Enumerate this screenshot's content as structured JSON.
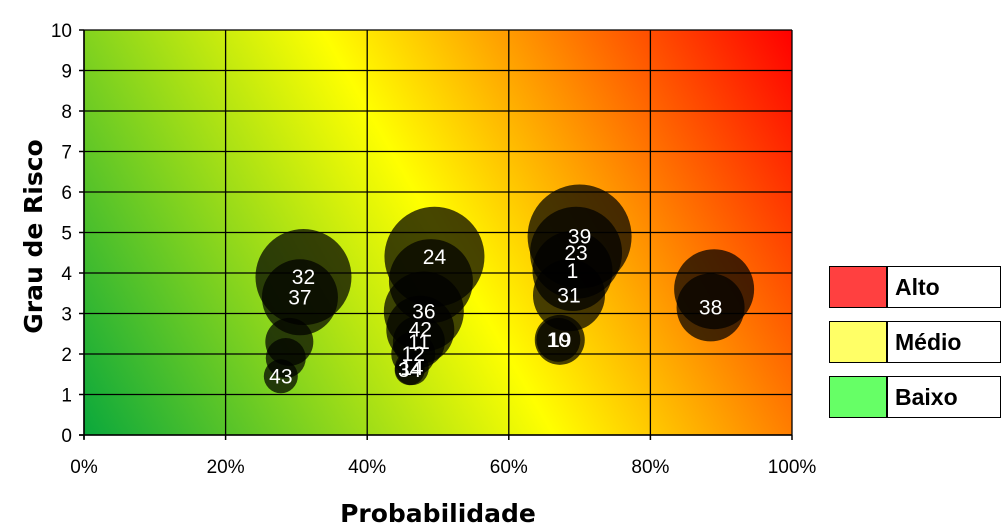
{
  "chart_data": {
    "type": "bubble",
    "title": "",
    "xlabel": "Probabilidade",
    "ylabel": "Grau de Risco",
    "xlim": [
      0,
      100
    ],
    "ylim": [
      0,
      10
    ],
    "x_ticks": [
      "0%",
      "20%",
      "40%",
      "60%",
      "80%",
      "100%"
    ],
    "y_ticks": [
      "0",
      "1",
      "2",
      "3",
      "4",
      "5",
      "6",
      "7",
      "8",
      "9",
      "10"
    ],
    "grid": true,
    "background_gradient": [
      "#0aa83c",
      "#ffff00",
      "#ff0000"
    ],
    "bubbles": [
      {
        "label": "32",
        "x": 31,
        "y": 3.9,
        "size": 48
      },
      {
        "label": "37",
        "x": 30.5,
        "y": 3.4,
        "size": 38
      },
      {
        "label": "",
        "x": 29,
        "y": 2.3,
        "size": 24
      },
      {
        "label": "",
        "x": 28.5,
        "y": 1.9,
        "size": 20
      },
      {
        "label": "43",
        "x": 27.8,
        "y": 1.45,
        "size": 17
      },
      {
        "label": "24",
        "x": 49.5,
        "y": 4.4,
        "size": 50
      },
      {
        "label": "",
        "x": 49,
        "y": 3.8,
        "size": 42
      },
      {
        "label": "36",
        "x": 48,
        "y": 3.05,
        "size": 40
      },
      {
        "label": "42",
        "x": 47.5,
        "y": 2.6,
        "size": 34
      },
      {
        "label": "11",
        "x": 47.3,
        "y": 2.3,
        "size": 26
      },
      {
        "label": "12",
        "x": 46.5,
        "y": 2.0,
        "size": 22
      },
      {
        "label": "14",
        "x": 46.3,
        "y": 1.65,
        "size": 17
      },
      {
        "label": "34",
        "x": 46,
        "y": 1.6,
        "size": 15
      },
      {
        "label": "39",
        "x": 70,
        "y": 4.9,
        "size": 52
      },
      {
        "label": "23",
        "x": 69.5,
        "y": 4.5,
        "size": 46
      },
      {
        "label": "1",
        "x": 69,
        "y": 4.05,
        "size": 40
      },
      {
        "label": "31",
        "x": 68.5,
        "y": 3.45,
        "size": 36
      },
      {
        "label": "19",
        "x": 67.2,
        "y": 2.35,
        "size": 25
      },
      {
        "label": "10",
        "x": 67,
        "y": 2.35,
        "size": 22
      },
      {
        "label": "",
        "x": 89,
        "y": 3.6,
        "size": 40
      },
      {
        "label": "38",
        "x": 88.5,
        "y": 3.15,
        "size": 34
      }
    ],
    "legend": {
      "position": "right",
      "items": [
        {
          "label": "Alto",
          "color": "#ff4040"
        },
        {
          "label": "Médio",
          "color": "#ffff66"
        },
        {
          "label": "Baixo",
          "color": "#66ff66"
        }
      ]
    }
  }
}
